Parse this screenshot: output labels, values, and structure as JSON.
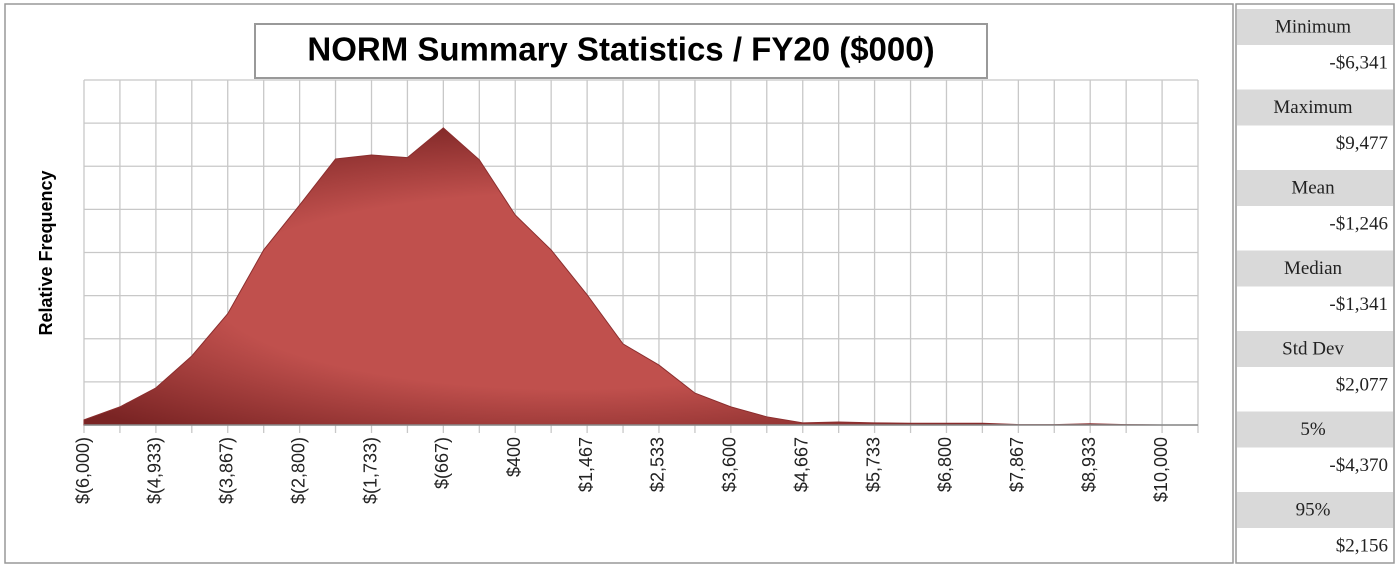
{
  "chart_data": {
    "type": "area",
    "title": "NORM Summary Statistics / FY20 ($000)",
    "y_label": "Relative Frequency",
    "color": "#c0504d",
    "x": [
      -6000,
      -5467,
      -4933,
      -4400,
      -3867,
      -3333,
      -2800,
      -2267,
      -1733,
      -1200,
      -667,
      -133,
      400,
      933,
      1467,
      2000,
      2533,
      3067,
      3600,
      4133,
      4667,
      5200,
      5733,
      6267,
      6800,
      7333,
      7867,
      8400,
      8933,
      9467,
      10000
    ],
    "values": [
      0.12,
      0.42,
      0.86,
      1.6,
      2.58,
      4.06,
      5.1,
      6.17,
      6.26,
      6.2,
      6.89,
      6.15,
      4.87,
      4.06,
      3.02,
      1.88,
      1.39,
      0.74,
      0.42,
      0.19,
      0.05,
      0.07,
      0.05,
      0.04,
      0.04,
      0.04,
      0.01,
      0.01,
      0.03,
      0.01,
      0
    ],
    "xlim": [
      -6000,
      10533
    ],
    "xticks": [
      {
        "value": -6000,
        "label": "$(6,000)"
      },
      {
        "value": -4933,
        "label": "$(4,933)"
      },
      {
        "value": -3867,
        "label": "$(3,867)"
      },
      {
        "value": -2800,
        "label": "$(2,800)"
      },
      {
        "value": -1733,
        "label": "$(1,733)"
      },
      {
        "value": -667,
        "label": "$(667)"
      },
      {
        "value": 400,
        "label": "$400"
      },
      {
        "value": 1467,
        "label": "$1,467"
      },
      {
        "value": 2533,
        "label": "$2,533"
      },
      {
        "value": 3600,
        "label": "$3,600"
      },
      {
        "value": 4667,
        "label": "$4,667"
      },
      {
        "value": 5733,
        "label": "$5,733"
      },
      {
        "value": 6800,
        "label": "$6,800"
      },
      {
        "value": 7867,
        "label": "$7,867"
      },
      {
        "value": 8933,
        "label": "$8,933"
      },
      {
        "value": 10000,
        "label": "$10,000"
      }
    ],
    "xminorticks": [
      -5467,
      -4400,
      -3333,
      -2267,
      -1200,
      -133,
      933,
      2000,
      3067,
      4133,
      5200,
      6267,
      7333,
      8400,
      9467,
      10533
    ],
    "ylim": [
      0,
      8
    ],
    "yticks": [
      0,
      1,
      2,
      3,
      4,
      5,
      6,
      7,
      8
    ],
    "grid": true
  },
  "stats": [
    {
      "label": "Minimum",
      "value": "-$6,341"
    },
    {
      "label": "Maximum",
      "value": "$9,477"
    },
    {
      "label": "Mean",
      "value": "-$1,246"
    },
    {
      "label": "Median",
      "value": "-$1,341"
    },
    {
      "label": "Std Dev",
      "value": "$2,077"
    },
    {
      "label": "5%",
      "value": "-$4,370"
    },
    {
      "label": "95%",
      "value": "$2,156"
    }
  ]
}
